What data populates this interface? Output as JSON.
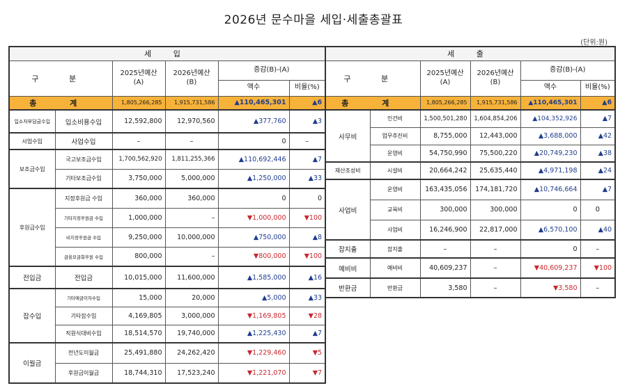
{
  "title": "2026년 문수마을 세입·세출총괄표",
  "unit": "(단위:원)",
  "headers": {
    "income": "세 입",
    "expense": "세 출",
    "gubun": "구 분",
    "b2025": "2025년예산",
    "b2025_sub": "(A)",
    "b2026": "2026년예산",
    "b2026_sub": "(B)",
    "diff": "증감(B)-(A)",
    "amount": "액수",
    "rate": "비율(%)",
    "total": "총 계"
  },
  "income_total": {
    "a": "1,805,266,285",
    "b": "1,915,731,586",
    "diff": "▲110,465,301",
    "rate": "▲6"
  },
  "expense_total": {
    "a": "1,805,266,285",
    "b": "1,915,731,586",
    "diff": "▲110,465,301",
    "rate": "▲6"
  },
  "income": [
    {
      "group": "입소자부담금수입",
      "item": "입소비용수입",
      "a": "12,592,800",
      "b": "12,970,560",
      "diff": "▲377,760",
      "rate": "▲3"
    },
    {
      "group": "사업수입",
      "item": "사업수입",
      "a": "–",
      "b": "–",
      "diff": "0",
      "rate": "–"
    },
    {
      "group": "보조금수입",
      "item": "국고보조금수입",
      "a": "1,700,562,920",
      "b": "1,811,255,366",
      "diff": "▲110,692,446",
      "rate": "▲7"
    },
    {
      "group": "",
      "item": "기타보조금수입",
      "a": "3,750,000",
      "b": "5,000,000",
      "diff": "▲1,250,000",
      "rate": "▲33"
    },
    {
      "group": "후원금수입",
      "item": "지정후원금 수입",
      "a": "360,000",
      "b": "360,000",
      "diff": "0",
      "rate": "0"
    },
    {
      "group": "",
      "item": "기타지정후원금 수입",
      "a": "1,000,000",
      "b": "–",
      "diff": "▼1,000,000",
      "rate": "▼100"
    },
    {
      "group": "",
      "item": "비지정후원금 수입",
      "a": "9,250,000",
      "b": "10,000,000",
      "diff": "▲750,000",
      "rate": "▲8"
    },
    {
      "group": "",
      "item": "금융모금회후원 수입",
      "a": "800,000",
      "b": "–",
      "diff": "▼800,000",
      "rate": "▼100"
    },
    {
      "group": "전입금",
      "item": "전입금",
      "a": "10,015,000",
      "b": "11,600,000",
      "diff": "▲1,585,000",
      "rate": "▲16"
    },
    {
      "group": "잡수입",
      "item": "기타예금이자수입",
      "a": "15,000",
      "b": "20,000",
      "diff": "▲5,000",
      "rate": "▲33"
    },
    {
      "group": "",
      "item": "기타잡수입",
      "a": "4,169,805",
      "b": "3,000,000",
      "diff": "▼1,169,805",
      "rate": "▼28"
    },
    {
      "group": "",
      "item": "직원식대비수입",
      "a": "18,514,570",
      "b": "19,740,000",
      "diff": "▲1,225,430",
      "rate": "▲7"
    },
    {
      "group": "이월금",
      "item": "전년도이월금",
      "a": "25,491,880",
      "b": "24,262,420",
      "diff": "▼1,229,460",
      "rate": "▼5"
    },
    {
      "group": "",
      "item": "후원금이월금",
      "a": "18,744,310",
      "b": "17,523,240",
      "diff": "▼1,221,070",
      "rate": "▼7"
    }
  ],
  "expense": [
    {
      "group": "사무비",
      "item": "인건비",
      "a": "1,500,501,280",
      "b": "1,604,854,206",
      "diff": "▲104,352,926",
      "rate": "▲7"
    },
    {
      "group": "",
      "item": "업무추진비",
      "a": "8,755,000",
      "b": "12,443,000",
      "diff": "▲3,688,000",
      "rate": "▲42"
    },
    {
      "group": "",
      "item": "운영비",
      "a": "54,750,990",
      "b": "75,500,220",
      "diff": "▲20,749,230",
      "rate": "▲38"
    },
    {
      "group": "재산조성비",
      "item": "시설비",
      "a": "20,664,242",
      "b": "25,635,440",
      "diff": "▲4,971,198",
      "rate": "▲24"
    },
    {
      "group": "사업비",
      "item": "운영비",
      "a": "163,435,056",
      "b": "174,181,720",
      "diff": "▲10,746,664",
      "rate": "▲7"
    },
    {
      "group": "",
      "item": "교육비",
      "a": "300,000",
      "b": "300,000",
      "diff": "0",
      "rate": "0"
    },
    {
      "group": "",
      "item": "사업비",
      "a": "16,246,900",
      "b": "22,817,000",
      "diff": "▲6,570,100",
      "rate": "▲40"
    },
    {
      "group": "잡지출",
      "item": "잡지출",
      "a": "–",
      "b": "–",
      "diff": "0",
      "rate": "–"
    },
    {
      "group": "예비비",
      "item": "예비비",
      "a": "40,609,237",
      "b": "–",
      "diff": "▼40,609,237",
      "rate": "▼100"
    },
    {
      "group": "반환금",
      "item": "반환금",
      "a": "3,580",
      "b": "–",
      "diff": "▼3,580",
      "rate": "–"
    }
  ]
}
